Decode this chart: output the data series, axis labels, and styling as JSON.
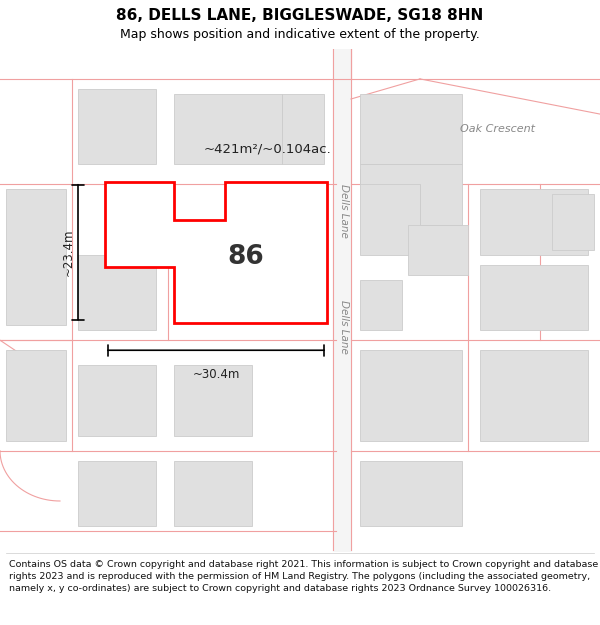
{
  "title": "86, DELLS LANE, BIGGLESWADE, SG18 8HN",
  "subtitle": "Map shows position and indicative extent of the property.",
  "footer": "Contains OS data © Crown copyright and database right 2021. This information is subject to Crown copyright and database rights 2023 and is reproduced with the permission of HM Land Registry. The polygons (including the associated geometry, namely x, y co-ordinates) are subject to Crown copyright and database rights 2023 Ordnance Survey 100026316.",
  "area_label": "~421m²/~0.104ac.",
  "property_number": "86",
  "dim_width": "~30.4m",
  "dim_height": "~23.4m",
  "road_label_upper": "Dells Lane",
  "road_label_lower": "Dells Lane",
  "road_label_crescent": "Oak Crescent",
  "map_bg": "#ffffff",
  "block_fill": "#e0e0e0",
  "block_edge": "#cccccc",
  "road_line_color": "#f0a0a0",
  "road_outline_color": "#d08080",
  "property_edge": "#ff0000",
  "property_fill": "#ffffff",
  "title_fontsize": 11,
  "subtitle_fontsize": 9,
  "footer_fontsize": 6.8,
  "label_color": "#888888",
  "text_color": "#222222"
}
